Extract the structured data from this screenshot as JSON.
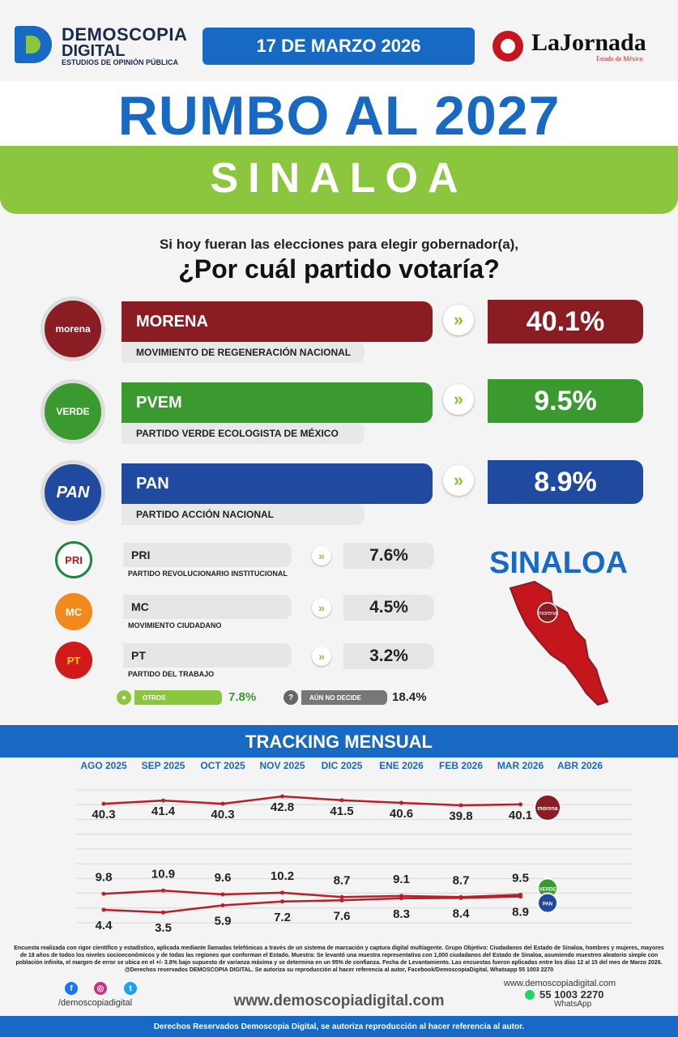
{
  "header": {
    "brand_line1": "DEMOSCOPIA",
    "brand_line2": "DIGITAL",
    "brand_tagline": "ESTUDIOS DE OPINIÓN PÚBLICA",
    "date": "17 DE MARZO 2026",
    "partner_name": "LaJornada",
    "partner_sub": "Estado de México"
  },
  "title": "RUMBO AL 2027",
  "state": "SINALOA",
  "question_line1": "Si hoy fueran las elecciones para elegir gobernador(a),",
  "question_line2": "¿Por cuál partido votaría?",
  "parties_major": [
    {
      "abbr": "MORENA",
      "logo_text": "morena",
      "full_name": "MOVIMIENTO DE REGENERACIÓN NACIONAL",
      "pct": "40.1%",
      "color": "#8a1c24"
    },
    {
      "abbr": "PVEM",
      "logo_text": "VERDE",
      "full_name": "PARTIDO VERDE ECOLOGISTA DE MÉXICO",
      "pct": "9.5%",
      "color": "#3a9a2f"
    },
    {
      "abbr": "PAN",
      "logo_text": "PAN",
      "full_name": "PARTIDO ACCIÓN NACIONAL",
      "pct": "8.9%",
      "color": "#1f4aa0"
    }
  ],
  "parties_minor": [
    {
      "abbr": "PRI",
      "logo_text": "PRI",
      "full_name": "PARTIDO REVOLUCIONARIO INSTITUCIONAL",
      "pct": "7.6%"
    },
    {
      "abbr": "MC",
      "logo_text": "MC",
      "full_name": "MOVIMIENTO CIUDADANO",
      "pct": "4.5%"
    },
    {
      "abbr": "PT",
      "logo_text": "PT",
      "full_name": "PARTIDO DEL TRABAJO",
      "pct": "3.2%"
    }
  ],
  "others": {
    "label": "OTROS",
    "pct": "7.8%"
  },
  "undecided": {
    "label": "AÚN NO DECIDE",
    "pct": "18.4%",
    "icon_text": "?"
  },
  "map_title": "SINALOA",
  "map_label": "morena",
  "chevron": "»",
  "tracking_title": "TRACKING MENSUAL",
  "chart_data": {
    "type": "line",
    "title": "TRACKING MENSUAL",
    "categories": [
      "AGO 2025",
      "SEP 2025",
      "OCT 2025",
      "NOV 2025",
      "DIC 2025",
      "ENE 2026",
      "FEB 2026",
      "MAR 2026",
      "ABR 2026"
    ],
    "series": [
      {
        "name": "morena",
        "values": [
          40.3,
          41.4,
          40.3,
          42.8,
          41.5,
          40.6,
          39.8,
          40.1,
          null
        ],
        "color": "#b5202a"
      },
      {
        "name": "VERDE",
        "values": [
          9.8,
          10.9,
          9.6,
          10.2,
          8.7,
          9.1,
          8.7,
          9.5,
          null
        ],
        "color": "#b5202a"
      },
      {
        "name": "PAN",
        "values": [
          4.4,
          3.5,
          5.9,
          7.2,
          7.6,
          8.3,
          8.4,
          8.9,
          null
        ],
        "color": "#b5202a"
      }
    ],
    "ylim": [
      0,
      45
    ],
    "grid": true
  },
  "footer": {
    "methodology": "Encuesta realizada con rigor científico y estadístico, aplicada mediante llamadas telefónicas a través de un sistema de marcación y captura digital multiagente. Grupo Objetivo: Ciudadanos del Estado de Sinaloa, hombres y mujeres, mayores de 18 años de todos los niveles socioeconómicos y de todas las regiones que conforman el Estado. Muestra: Se levantó una muestra representativa con 1,000 ciudadanos del Estado de Sinaloa, asumiendo muestreo aleatorio simple con población infinita, el margen de error se ubica en el +/- 3.8% bajo supuesto de varianza máxima y se determina en un 95% de confianza. Fecha de Levantamiento. Las encuestas fueron aplicadas entre los días 12 al 15 del mes de Marzo 2026. @Derechos reservados DEMOSCOPIA DIGITAL. Se autoriza su reproducción al hacer referencia al autor, Facebook/DemoscopiaDigital, Whatsapp 55 1003 2270",
    "social_handle": "/demoscopiadigital",
    "website": "www.demoscopiadigital.com",
    "website_small": "www.demoscopiadigital.com",
    "phone": "55 1003 2270",
    "whatsapp_label": "WhatsApp",
    "rights": "Derechos Reservados Demoscopia Digital, se autoriza reproducción al hacer referencia al autor.",
    "social_icons": [
      "facebook-icon",
      "instagram-icon",
      "twitter-icon"
    ]
  }
}
